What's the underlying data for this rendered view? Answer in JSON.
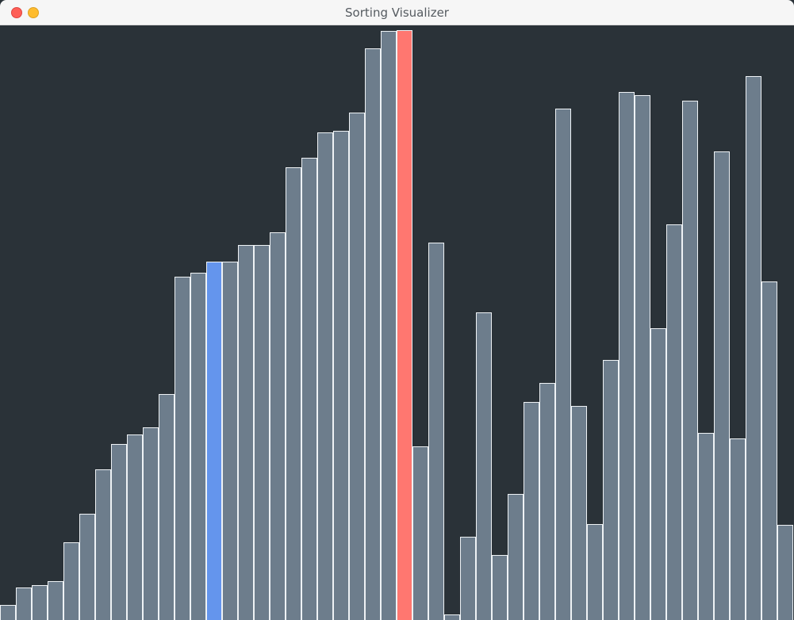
{
  "window": {
    "title": "Sorting Visualizer"
  },
  "colors": {
    "background": "#2a3238",
    "bar": "#6d7d8c",
    "bar_border": "#eef2f5",
    "compare": "#6495ed",
    "swap": "#ff7770"
  },
  "icons": {
    "close": "close-icon",
    "minimize": "minimize-icon"
  },
  "chart_data": {
    "type": "bar",
    "max_value": 750,
    "values": [
      19,
      41,
      44,
      49,
      98,
      134,
      190,
      222,
      234,
      243,
      285,
      433,
      438,
      452,
      452,
      473,
      473,
      489,
      571,
      583,
      615,
      617,
      640,
      721,
      743,
      744,
      219,
      476,
      7,
      105,
      388,
      82,
      159,
      275,
      299,
      645,
      270,
      121,
      328,
      666,
      662,
      368,
      499,
      655,
      236,
      591,
      229,
      686,
      427,
      120
    ],
    "highlights": {
      "compare_index": 13,
      "swap_index": 25
    }
  }
}
